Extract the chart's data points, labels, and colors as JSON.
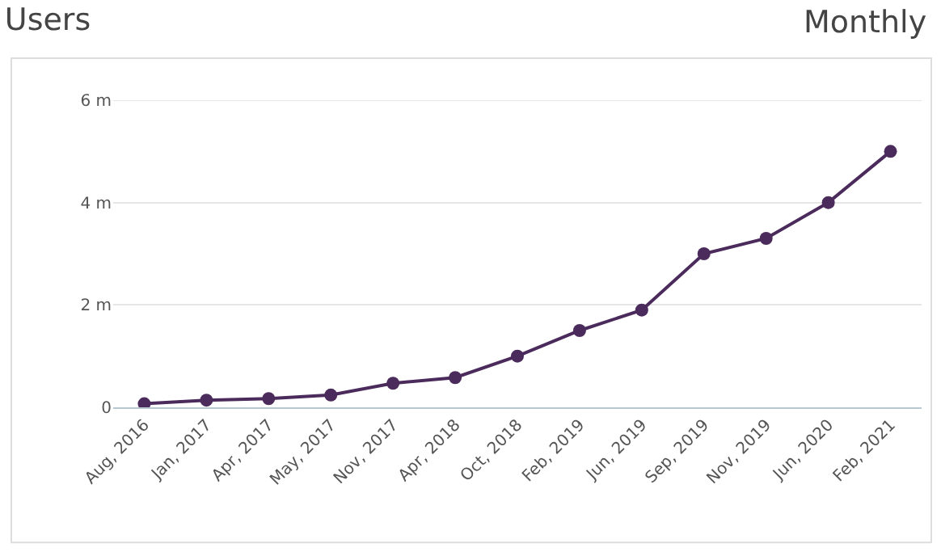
{
  "chart_data": {
    "type": "line",
    "title": "Users",
    "annotations": [
      "Monthly"
    ],
    "categories": [
      "Aug, 2016",
      "Jan, 2017",
      "Apr, 2017",
      "May, 2017",
      "Nov, 2017",
      "Apr, 2018",
      "Oct, 2018",
      "Feb, 2019",
      "Jun, 2019",
      "Sep, 2019",
      "Nov, 2019",
      "Jun, 2020",
      "Feb, 2021"
    ],
    "series": [
      {
        "color": "#4b2a5c",
        "values": [
          0.07,
          0.14,
          0.17,
          0.24,
          0.47,
          0.58,
          1.0,
          1.5,
          1.9,
          3.0,
          3.3,
          4.0,
          5.0
        ]
      }
    ],
    "ylim": [
      0,
      6
    ],
    "yticks": [
      0,
      {
        "value": 2,
        "label": "2 m"
      },
      {
        "value": 4,
        "label": "4 m"
      },
      {
        "value": 6,
        "label": "6 m"
      }
    ],
    "grid": "y",
    "marker": "circle",
    "line_style": "solid"
  }
}
